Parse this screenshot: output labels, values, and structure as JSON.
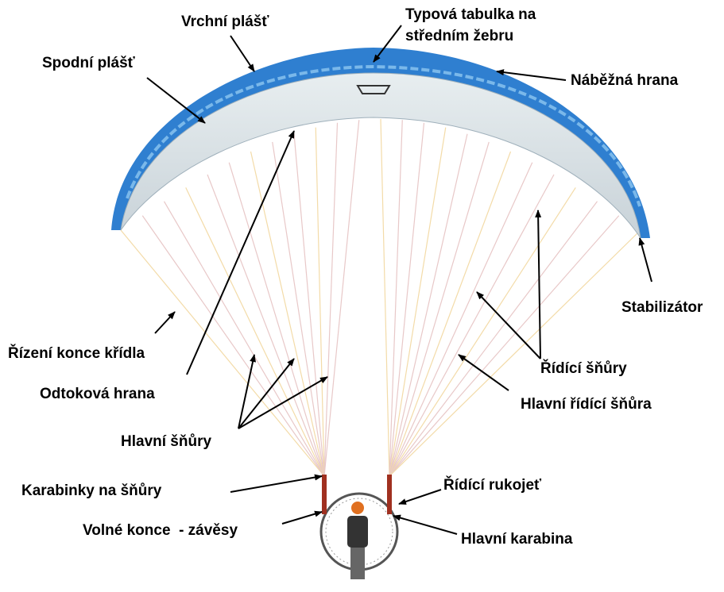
{
  "labels": {
    "top_surface": "Vrchní plášť",
    "type_plate": [
      "Typová tabulka na",
      "středním žebru"
    ],
    "bottom_surface": "Spodní plášť",
    "leading_edge": "Náběžná hrana",
    "stabilizer": "Stabilizátor",
    "wingtip_steering": "Řízení konce křídla",
    "trailing_edge": "Odtoková hrana",
    "main_lines": "Hlavní šňůry",
    "steering_lines": "Řídící šňůry",
    "main_steering_line": "Hlavní řídící šňůra",
    "line_carabiners": "Karabinky na šňůry",
    "steering_handle": "Řídící rukojeť",
    "risers": "Volné konce  - závěsy",
    "main_carabiner": "Hlavní karabina"
  }
}
